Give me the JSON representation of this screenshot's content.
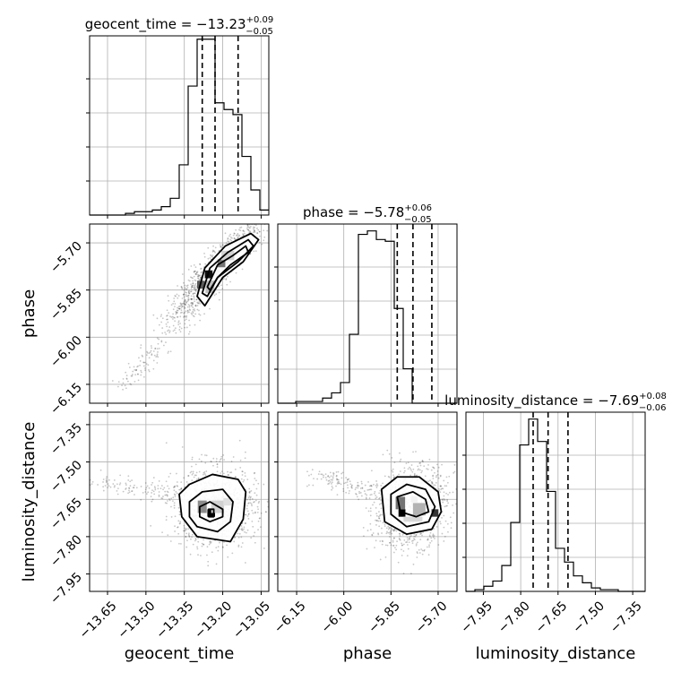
{
  "chart_data": {
    "type": "corner",
    "parameters": [
      {
        "name": "geocent_time",
        "axis_label": "geocent_time",
        "range": [
          -13.72,
          -13.02
        ],
        "ticks": [
          -13.65,
          -13.5,
          -13.35,
          -13.2,
          -13.05
        ],
        "tick_labels": [
          "−13.65",
          "−13.50",
          "−13.35",
          "−13.20",
          "−13.05"
        ]
      },
      {
        "name": "phase",
        "axis_label": "phase",
        "range": [
          -6.21,
          -5.64
        ],
        "ticks": [
          -6.15,
          -6.0,
          -5.85,
          -5.7
        ],
        "tick_labels": [
          "−6.15",
          "−6.00",
          "−5.85",
          "−5.70"
        ]
      },
      {
        "name": "luminosity_distance",
        "axis_label": "luminosity_distance",
        "range": [
          -8.02,
          -7.3
        ],
        "ticks": [
          -7.95,
          -7.8,
          -7.65,
          -7.5,
          -7.35
        ],
        "tick_labels": [
          "−7.95",
          "−7.80",
          "−7.65",
          "−7.50",
          "−7.35"
        ]
      }
    ],
    "diag_titles": [
      {
        "prefix": "geocent_time = −13.23",
        "sup": "+0.09",
        "sub": "−0.05"
      },
      {
        "prefix": "phase = −5.78",
        "sup": "+0.06",
        "sub": "−0.05"
      },
      {
        "prefix": "luminosity_distance = −7.69",
        "sup": "+0.08",
        "sub": "−0.06"
      }
    ],
    "histograms": [
      {
        "edges_start": -13.72,
        "bin_width": 0.035,
        "counts": [
          0,
          0,
          0,
          0,
          1,
          2,
          2,
          3,
          5,
          10,
          30,
          77,
          105,
          105,
          67,
          63,
          60,
          35,
          15,
          3
        ]
      },
      {
        "edges_start": -6.21,
        "bin_width": 0.0285,
        "counts": [
          0,
          0,
          1,
          1,
          1,
          3,
          6,
          12,
          40,
          98,
          100,
          95,
          94,
          55,
          20,
          0,
          0,
          0,
          0,
          0
        ]
      },
      {
        "edges_start": -8.02,
        "bin_width": 0.036,
        "counts": [
          0,
          1,
          3,
          6,
          15,
          40,
          85,
          100,
          87,
          58,
          25,
          17,
          9,
          5,
          2,
          1,
          1,
          0,
          0,
          0
        ]
      }
    ],
    "hist_ymax": [
      107,
      104,
      104
    ],
    "quantiles": [
      [
        -13.28,
        -13.23,
        -13.14
      ],
      [
        -5.83,
        -5.78,
        -5.72
      ],
      [
        -7.75,
        -7.69,
        -7.61
      ]
    ],
    "pairs": [
      {
        "x": 0,
        "y": 1,
        "contours": [
          [
            [
              -13.3,
              -5.87
            ],
            [
              -13.27,
              -5.78
            ],
            [
              -13.19,
              -5.71
            ],
            [
              -13.09,
              -5.67
            ],
            [
              -13.06,
              -5.69
            ],
            [
              -13.12,
              -5.76
            ],
            [
              -13.2,
              -5.81
            ],
            [
              -13.27,
              -5.9
            ]
          ],
          [
            [
              -13.28,
              -5.86
            ],
            [
              -13.25,
              -5.78
            ],
            [
              -13.18,
              -5.73
            ],
            [
              -13.1,
              -5.69
            ],
            [
              -13.08,
              -5.71
            ],
            [
              -13.14,
              -5.76
            ],
            [
              -13.22,
              -5.81
            ],
            [
              -13.26,
              -5.87
            ]
          ],
          [
            [
              -13.26,
              -5.84
            ],
            [
              -13.22,
              -5.77
            ],
            [
              -13.16,
              -5.74
            ],
            [
              -13.11,
              -5.71
            ],
            [
              -13.1,
              -5.73
            ],
            [
              -13.17,
              -5.77
            ],
            [
              -13.22,
              -5.81
            ],
            [
              -13.25,
              -5.85
            ]
          ]
        ],
        "cells": [
          {
            "x": -13.255,
            "y": -5.8,
            "w": 0.03,
            "h": 0.025,
            "shade": 0.95
          },
          {
            "x": -13.205,
            "y": -5.765,
            "w": 0.03,
            "h": 0.025,
            "shade": 0.55
          },
          {
            "x": -13.285,
            "y": -5.833,
            "w": 0.03,
            "h": 0.025,
            "shade": 0.65
          },
          {
            "x": -13.25,
            "y": -5.84,
            "w": 0.035,
            "h": 0.04,
            "shade": 0.25
          },
          {
            "x": -13.18,
            "y": -5.74,
            "w": 0.05,
            "h": 0.03,
            "shade": 0.18
          }
        ],
        "scatter": {
          "center": [
            -13.22,
            -5.78
          ],
          "sd": [
            0.08,
            0.07
          ],
          "corr": 0.92,
          "n": 1100,
          "tail_from": [
            -13.6,
            -6.16
          ],
          "tail_to": [
            -13.3,
            -5.9
          ],
          "tail_n": 140
        }
      },
      {
        "x": 0,
        "y": 2,
        "contours": [
          [
            [
              -13.37,
              -7.63
            ],
            [
              -13.33,
              -7.59
            ],
            [
              -13.24,
              -7.55
            ],
            [
              -13.14,
              -7.57
            ],
            [
              -13.11,
              -7.62
            ],
            [
              -13.12,
              -7.73
            ],
            [
              -13.17,
              -7.82
            ],
            [
              -13.3,
              -7.8
            ],
            [
              -13.36,
              -7.72
            ]
          ],
          [
            [
              -13.33,
              -7.66
            ],
            [
              -13.28,
              -7.62
            ],
            [
              -13.2,
              -7.61
            ],
            [
              -13.16,
              -7.66
            ],
            [
              -13.17,
              -7.74
            ],
            [
              -13.22,
              -7.78
            ],
            [
              -13.3,
              -7.76
            ],
            [
              -13.33,
              -7.72
            ]
          ],
          [
            [
              -13.29,
              -7.68
            ],
            [
              -13.25,
              -7.66
            ],
            [
              -13.2,
              -7.69
            ],
            [
              -13.2,
              -7.72
            ],
            [
              -13.25,
              -7.74
            ],
            [
              -13.29,
              -7.72
            ]
          ],
          [
            [
              -13.255,
              -7.69
            ],
            [
              -13.235,
              -7.69
            ],
            [
              -13.235,
              -7.72
            ],
            [
              -13.255,
              -7.72
            ]
          ]
        ],
        "cells": [
          {
            "x": -13.245,
            "y": -7.705,
            "w": 0.03,
            "h": 0.03,
            "shade": 1.0
          },
          {
            "x": -13.28,
            "y": -7.68,
            "w": 0.035,
            "h": 0.05,
            "shade": 0.45
          },
          {
            "x": -13.22,
            "y": -7.68,
            "w": 0.05,
            "h": 0.05,
            "shade": 0.18
          },
          {
            "x": -13.18,
            "y": -7.66,
            "w": 0.035,
            "h": 0.03,
            "shade": 0.12
          }
        ],
        "scatter": {
          "center": [
            -13.23,
            -7.68
          ],
          "sd": [
            0.07,
            0.07
          ],
          "corr": 0.0,
          "n": 1100,
          "tail_from": [
            -13.7,
            -7.58
          ],
          "tail_to": [
            -13.35,
            -7.63
          ],
          "tail_n": 110
        }
      },
      {
        "x": 1,
        "y": 2,
        "contours": [
          [
            [
              -5.88,
              -7.61
            ],
            [
              -5.83,
              -7.56
            ],
            [
              -5.76,
              -7.56
            ],
            [
              -5.7,
              -7.62
            ],
            [
              -5.69,
              -7.7
            ],
            [
              -5.72,
              -7.77
            ],
            [
              -5.8,
              -7.79
            ],
            [
              -5.87,
              -7.74
            ]
          ],
          [
            [
              -5.85,
              -7.63
            ],
            [
              -5.8,
              -7.59
            ],
            [
              -5.74,
              -7.61
            ],
            [
              -5.71,
              -7.68
            ],
            [
              -5.73,
              -7.74
            ],
            [
              -5.8,
              -7.76
            ],
            [
              -5.85,
              -7.71
            ]
          ],
          [
            [
              -5.83,
              -7.64
            ],
            [
              -5.78,
              -7.62
            ],
            [
              -5.74,
              -7.65
            ],
            [
              -5.73,
              -7.7
            ],
            [
              -5.77,
              -7.72
            ],
            [
              -5.82,
              -7.7
            ]
          ]
        ],
        "cells": [
          {
            "x": -5.815,
            "y": -7.705,
            "w": 0.022,
            "h": 0.03,
            "shade": 1.0
          },
          {
            "x": -5.71,
            "y": -7.705,
            "w": 0.022,
            "h": 0.03,
            "shade": 0.8
          },
          {
            "x": -5.775,
            "y": -7.65,
            "w": 0.02,
            "h": 0.025,
            "shade": 0.05
          },
          {
            "x": -5.82,
            "y": -7.665,
            "w": 0.03,
            "h": 0.05,
            "shade": 0.55
          },
          {
            "x": -5.76,
            "y": -7.69,
            "w": 0.04,
            "h": 0.05,
            "shade": 0.3
          },
          {
            "x": -5.78,
            "y": -7.73,
            "w": 0.06,
            "h": 0.02,
            "shade": 0.15
          }
        ],
        "scatter": {
          "center": [
            -5.79,
            -7.68
          ],
          "sd": [
            0.05,
            0.07
          ],
          "corr": 0.15,
          "n": 1100,
          "tail_from": [
            -6.1,
            -7.55
          ],
          "tail_to": [
            -5.9,
            -7.62
          ],
          "tail_n": 120
        }
      }
    ]
  }
}
